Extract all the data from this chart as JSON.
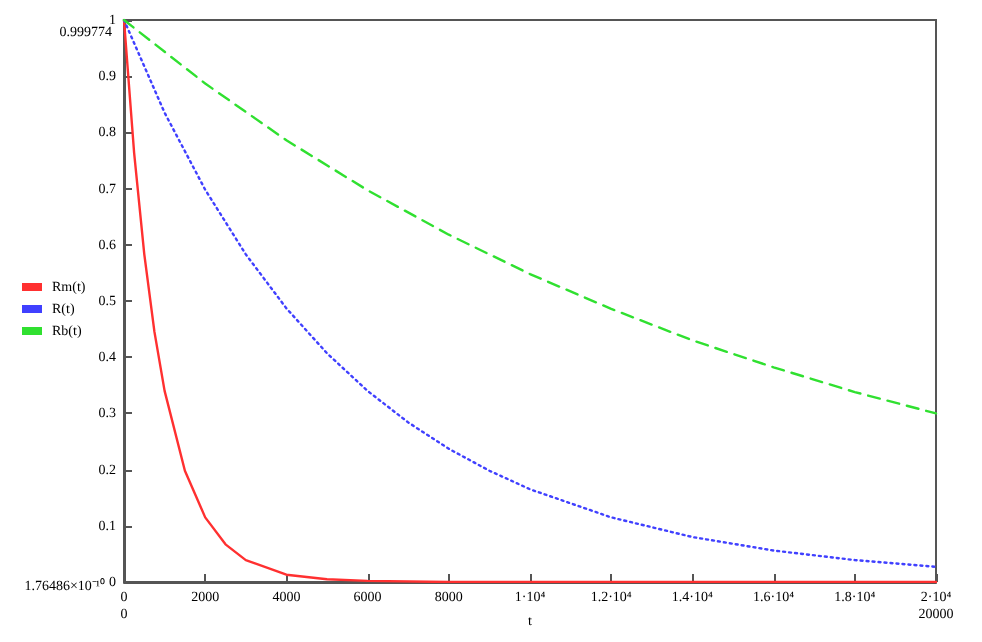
{
  "chart_data": {
    "type": "line",
    "xlabel": "t",
    "xlim": [
      0,
      20000
    ],
    "ylim": [
      0,
      1
    ],
    "xticks": [
      0,
      2000,
      4000,
      6000,
      8000,
      {
        "value": 10000,
        "label": "1·10⁴"
      },
      {
        "value": 12000,
        "label": "1.2·10⁴"
      },
      {
        "value": 14000,
        "label": "1.4·10⁴"
      },
      {
        "value": 16000,
        "label": "1.6·10⁴"
      },
      {
        "value": 18000,
        "label": "1.8·10⁴"
      },
      {
        "value": 20000,
        "label": "2·10⁴"
      }
    ],
    "yticks": [
      0,
      0.1,
      0.2,
      0.3,
      0.4,
      0.5,
      0.6,
      0.7,
      0.8,
      0.9,
      1
    ],
    "legend": "left",
    "grid": false,
    "marker": "none",
    "annotations": [
      "0.999774",
      "1.76486×10⁻¹⁰",
      "0",
      "20000"
    ],
    "series": [
      {
        "name": "Rm(t)",
        "color": "#ff3030",
        "line_style": "solid",
        "x": [
          0,
          250,
          500,
          750,
          1000,
          1500,
          2000,
          2500,
          3000,
          4000,
          5000,
          6000,
          8000,
          20000
        ],
        "values": [
          1,
          0.763,
          0.583,
          0.445,
          0.34,
          0.198,
          0.115,
          0.067,
          0.039,
          0.013,
          0.005,
          0.002,
          0,
          0
        ]
      },
      {
        "name": "R(t)",
        "color": "#4040ff",
        "line_style": "dotted",
        "x": [
          0,
          1000,
          2000,
          3000,
          4000,
          5000,
          6000,
          7000,
          8000,
          9000,
          10000,
          12000,
          14000,
          16000,
          18000,
          20000
        ],
        "values": [
          1,
          0.835,
          0.698,
          0.583,
          0.487,
          0.407,
          0.34,
          0.284,
          0.237,
          0.198,
          0.165,
          0.115,
          0.08,
          0.056,
          0.039,
          0.027
        ]
      },
      {
        "name": "Rb(t)",
        "color": "#30e030",
        "line_style": "dashed",
        "x": [
          0,
          2000,
          4000,
          6000,
          8000,
          10000,
          12000,
          14000,
          16000,
          18000,
          20000
        ],
        "values": [
          1,
          0.887,
          0.786,
          0.697,
          0.618,
          0.548,
          0.486,
          0.43,
          0.382,
          0.338,
          0.3
        ]
      }
    ]
  }
}
